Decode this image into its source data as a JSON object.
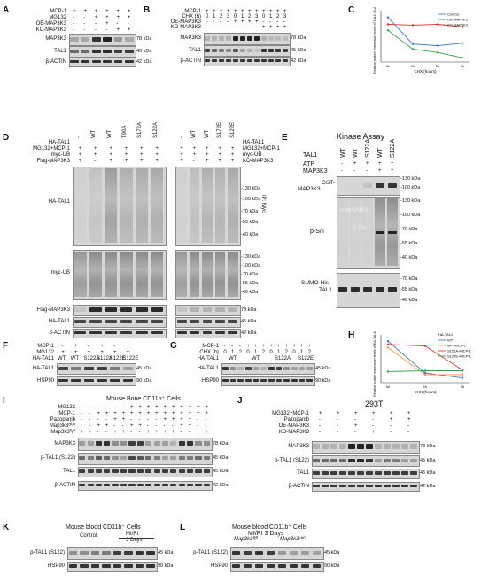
{
  "panels": {
    "A": {
      "letter": "A",
      "rows": [
        "MCP-1",
        "MG132",
        "OE-MAP3K3",
        "KO-MAP3K3"
      ],
      "signs": [
        [
          "+",
          "+",
          "+",
          "+",
          "+",
          "+"
        ],
        [
          "-",
          "-",
          "+",
          "+",
          "+",
          "+"
        ],
        [
          "-",
          "-",
          "-",
          "+",
          "-",
          "-"
        ],
        [
          "-",
          "-",
          "-",
          "-",
          "+",
          "+"
        ]
      ],
      "blots": [
        {
          "name": "MAP3K3",
          "kda": "78 kDa"
        },
        {
          "name": "TAL1",
          "kda": "45 kDa"
        },
        {
          "name": "β-ACTIN",
          "kda": "42 kDa"
        }
      ]
    },
    "B": {
      "letter": "B",
      "rows": [
        "MCP-1",
        "CHX (h)",
        "OE-MAP3K3",
        "KO-MAP3K3"
      ],
      "chx": [
        "0",
        "1",
        "2",
        "3",
        "0",
        "1",
        "2",
        "3",
        "0",
        "1",
        "2",
        "3"
      ],
      "blots": [
        {
          "name": "MAP3K3",
          "kda": "78 kDa"
        },
        {
          "name": "TAL1",
          "kda": "45 kDa"
        },
        {
          "name": "β-ACTIN",
          "kda": "42 kDa"
        }
      ]
    },
    "C": {
      "letter": "C"
    },
    "D": {
      "letter": "D",
      "header": [
        "HA-TAL1",
        "MG132+MCP-1",
        "myc-UB",
        "Flag-MAP3K3"
      ],
      "header_right": [
        "HA-TAL1",
        "MG132+MCP-1",
        "myc-UB",
        "KO-MAP3K3"
      ],
      "left_lanes": [
        "-",
        "WT",
        "WT",
        "T90A",
        "S172A",
        "S122A"
      ],
      "right_lanes": [
        "-",
        "WT",
        "WT",
        "S172E",
        "S122E"
      ],
      "blots": [
        {
          "name": "HA-TAL1"
        },
        {
          "name": "myc-UB"
        },
        {
          "name": "Flag-MAP3K3",
          "kda": "78 kDa"
        },
        {
          "name": "HA-TAL1",
          "kda": "45 kDa"
        },
        {
          "name": "β-ACTIN",
          "kda": "42 kDa"
        }
      ],
      "markers": [
        "130 kDa",
        "100 kDa",
        "70 kDa",
        "55 kDa",
        "40 kDa"
      ],
      "ip": "IP: Myc"
    },
    "E": {
      "letter": "E",
      "title": "Kinase Assay",
      "tal1_lanes": [
        "WT",
        "WT",
        "S122A",
        "WT",
        "S122A"
      ],
      "rows": [
        "TAL1",
        "ATP",
        "MAP3K3"
      ],
      "atp": [
        "-",
        "+",
        "+",
        "+",
        "+"
      ],
      "map3k3": [
        "-",
        "-",
        "-",
        "+",
        "+"
      ],
      "blots": [
        {
          "name": "GST-MAP3K3"
        },
        {
          "name": "p-S/T"
        },
        {
          "name": "SUMO-His-TAL1"
        }
      ],
      "inner": [
        "p-MAP3K3",
        "p-TAL1"
      ],
      "markers_top": [
        "130 kDa",
        "100 kDa"
      ],
      "markers_mid": [
        "130 kDa",
        "100 kDa",
        "70 kDa",
        "55 kDa",
        "40 kDa"
      ],
      "markers_bot": [
        "70 kDa",
        "55 kDa",
        "40 kDa"
      ]
    },
    "F": {
      "letter": "F",
      "rows": [
        "MCP-1",
        "MG132",
        "HA-TAL1"
      ],
      "lanes": [
        "WT",
        "WT",
        "S122A",
        "S122A",
        "S122E",
        "S122E"
      ],
      "blots": [
        {
          "name": "HA-TAL1",
          "kda": "45 kDa"
        },
        {
          "name": "HSP90",
          "kda": "90 kDa"
        }
      ]
    },
    "G": {
      "letter": "G",
      "rows": [
        "MCP-1",
        "CHX (h)",
        "HA-TAL1"
      ],
      "chx": [
        "0",
        "1",
        "2",
        "0",
        "1",
        "2",
        "0",
        "1",
        "2",
        "0",
        "1",
        "2"
      ],
      "lanes": [
        "WT",
        "WT",
        "S122A",
        "S122E"
      ],
      "blots": [
        {
          "name": "HA-TAL1",
          "kda": "45 kDa"
        },
        {
          "name": "HSP90",
          "kda": "90 kDa"
        }
      ]
    },
    "H": {
      "letter": "H"
    },
    "I": {
      "letter": "I",
      "title": "Mouse Bone CD11b⁺ Cells",
      "rows": [
        "MG132",
        "MCP-1",
        "Pazopanib",
        "Map3k3ᶜᴷᴼ",
        "Map3k3ᶠˡ/ᶠˡ"
      ],
      "blots": [
        {
          "name": "MAP3K3",
          "kda": "78 kDa"
        },
        {
          "name": "p-TAL1 (S122)",
          "kda": "45 kDa"
        },
        {
          "name": "TAL1",
          "kda": "45 kDa"
        },
        {
          "name": "β-ACTIN",
          "kda": "42 kDa"
        }
      ]
    },
    "J": {
      "letter": "J",
      "title": "293T",
      "rows": [
        "MG132+MCP-1",
        "Pazopanib",
        "OE-MAP3K3",
        "KO-MAP3K3"
      ],
      "blots": [
        {
          "name": "MAP3K3",
          "kda": "78 kDa"
        },
        {
          "name": "p-TAL1 (S122)",
          "kda": "45 kDa"
        },
        {
          "name": "TAL1",
          "kda": "45 kDa"
        },
        {
          "name": "β-ACTIN",
          "kda": "42 kDa"
        }
      ]
    },
    "K": {
      "letter": "K",
      "title": "Mouse blood CD11b⁺ Cells",
      "groups": [
        "Control",
        "MI/RI\n3 Days"
      ],
      "blots": [
        {
          "name": "p-TAL1 (S122)",
          "kda": "45 kDa"
        },
        {
          "name": "HSP90",
          "kda": "90 kDa"
        }
      ]
    },
    "L": {
      "letter": "L",
      "title": "Mouse blood CD11b⁺ Cells",
      "subtitle": "MI/RI 3 Days",
      "groups": [
        "Map3k3ᶠˡ/ᶠˡ",
        "Map3k3ᶜᴷᴼ"
      ],
      "blots": [
        {
          "name": "p-TAL1 (S122)",
          "kda": "45 kDa"
        },
        {
          "name": "HSP90",
          "kda": "90 kDa"
        }
      ]
    }
  },
  "chart_data": [
    {
      "type": "line",
      "panel": "C",
      "x": [
        "0h",
        "1h",
        "2h",
        "3h"
      ],
      "xlabel": "CHX (hours)",
      "ylabel": "Relative protein expression levels of TAL1 / β-ACTIN",
      "ylim": [
        0,
        3
      ],
      "series": [
        {
          "name": "Control",
          "color": "#3a78c8",
          "values": [
            2.6,
            1.05,
            0.95,
            1.1
          ]
        },
        {
          "name": "OE-MAP3K3",
          "color": "#3aa04a",
          "values": [
            1.85,
            0.75,
            0.55,
            0.25
          ]
        },
        {
          "name": "KO-MAP3K3",
          "color": "#d6352a",
          "values": [
            2.2,
            2.15,
            2.2,
            2.05
          ]
        }
      ]
    },
    {
      "type": "line",
      "panel": "H",
      "x": [
        "0h",
        "1h",
        "2h"
      ],
      "xlabel": "CHX (hours)",
      "ylabel": "Relative protein expression levels of HA-TAL1/HSP90",
      "ylim": [
        0,
        3
      ],
      "legend_title": "HA-TAL1",
      "series": [
        {
          "name": "WT",
          "color": "#3a78c8",
          "values": [
            2.6,
            0.6,
            0.3
          ]
        },
        {
          "name": "WT+MCP-1",
          "color": "#f0a030",
          "values": [
            2.2,
            0.5,
            0.5
          ]
        },
        {
          "name": "S122A+MCP-1",
          "color": "#d6352a",
          "values": [
            2.4,
            2.3,
            0.8
          ]
        },
        {
          "name": "S122E+MCP-1",
          "color": "#3aa04a",
          "values": [
            0.7,
            0.75,
            0.75
          ]
        }
      ]
    }
  ]
}
